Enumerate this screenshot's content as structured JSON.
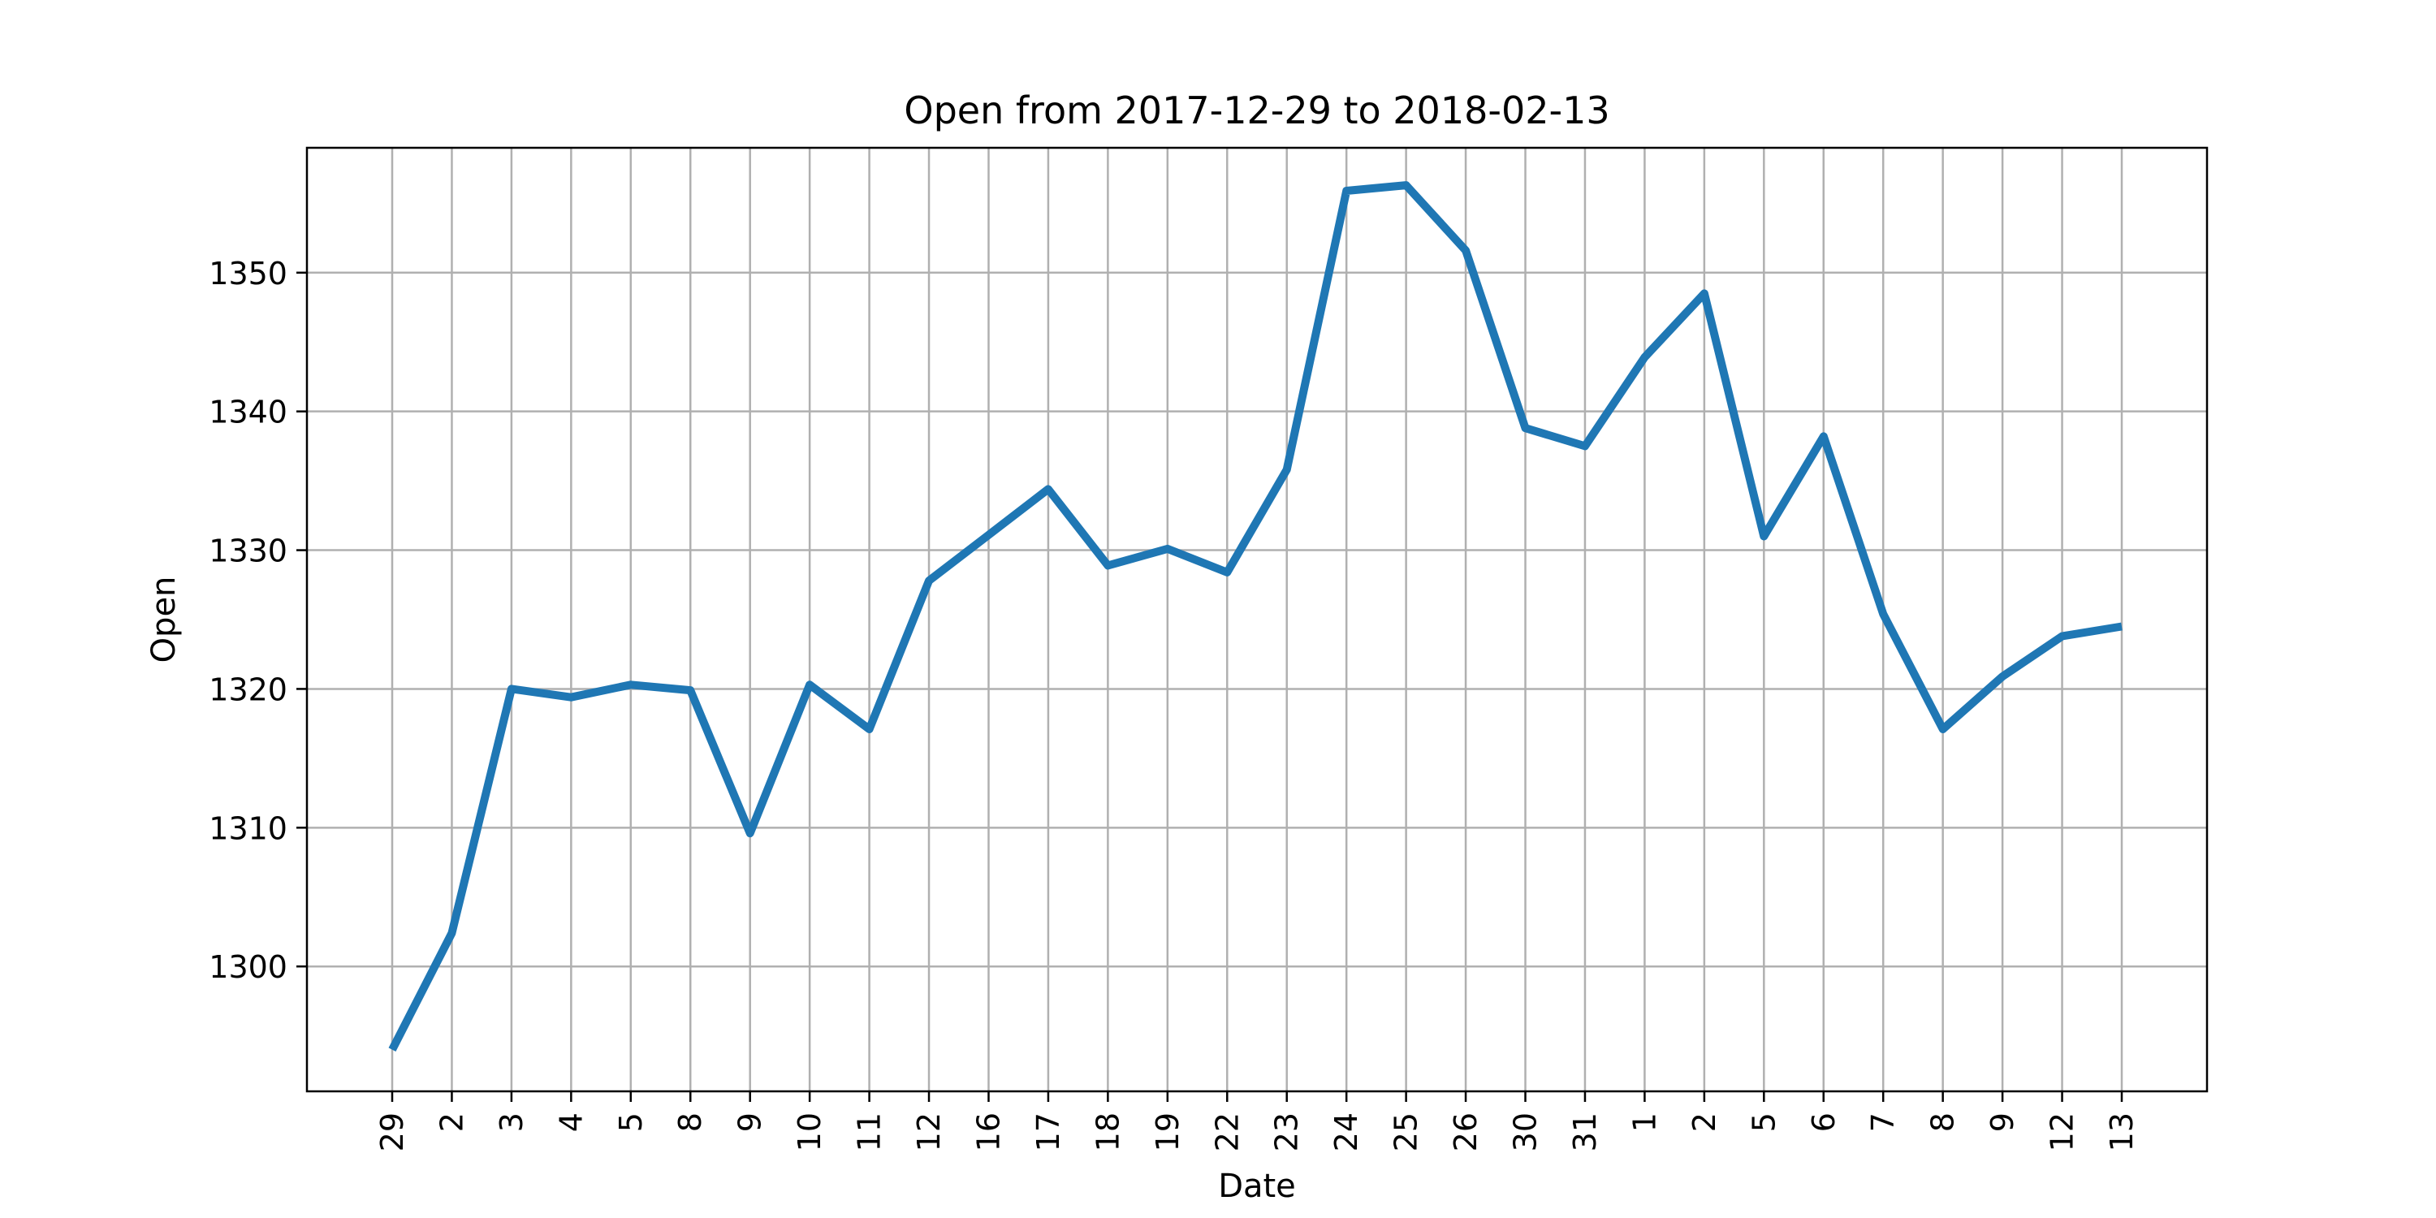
{
  "chart_data": {
    "type": "line",
    "title": "Open from 2017-12-29 to 2018-02-13",
    "xlabel": "Date",
    "ylabel": "Open",
    "ylim": [
      1291,
      1359
    ],
    "yticks": [
      1300,
      1310,
      1320,
      1330,
      1340,
      1350
    ],
    "grid": true,
    "categories": [
      "29",
      "2",
      "3",
      "4",
      "5",
      "8",
      "9",
      "10",
      "11",
      "12",
      "16",
      "17",
      "18",
      "19",
      "22",
      "23",
      "24",
      "25",
      "26",
      "30",
      "31",
      "1",
      "2",
      "5",
      "6",
      "7",
      "8",
      "9",
      "12",
      "13"
    ],
    "x": [
      "2017-12-29",
      "2018-01-02",
      "2018-01-03",
      "2018-01-04",
      "2018-01-05",
      "2018-01-08",
      "2018-01-09",
      "2018-01-10",
      "2018-01-11",
      "2018-01-12",
      "2018-01-16",
      "2018-01-17",
      "2018-01-18",
      "2018-01-19",
      "2018-01-22",
      "2018-01-23",
      "2018-01-24",
      "2018-01-25",
      "2018-01-26",
      "2018-01-30",
      "2018-01-31",
      "2018-02-01",
      "2018-02-02",
      "2018-02-05",
      "2018-02-06",
      "2018-02-07",
      "2018-02-08",
      "2018-02-09",
      "2018-02-12",
      "2018-02-13"
    ],
    "series": [
      {
        "color": "#1f77b4",
        "values": [
          1294.0,
          1302.4,
          1320.0,
          1319.4,
          1320.3,
          1319.9,
          1309.6,
          1320.3,
          1317.1,
          1327.8,
          1331.1,
          1334.4,
          1328.9,
          1330.1,
          1328.4,
          1335.8,
          1355.9,
          1356.3,
          1351.6,
          1338.8,
          1337.5,
          1343.9,
          1348.5,
          1331.0,
          1338.2,
          1325.4,
          1317.1,
          1320.9,
          1323.8,
          1324.5
        ]
      }
    ]
  }
}
